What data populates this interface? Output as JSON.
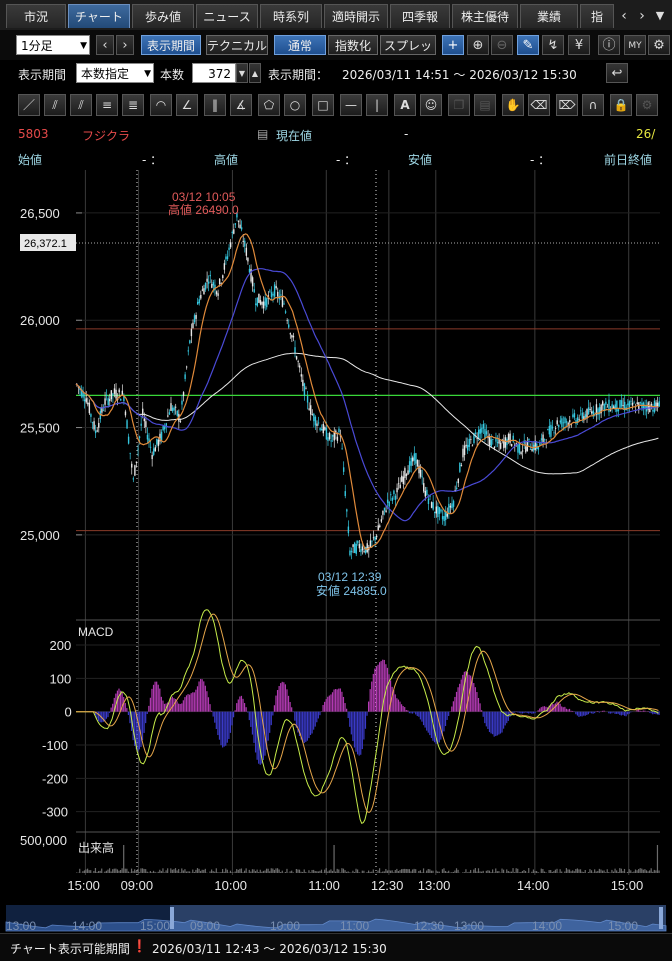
{
  "tabs": [
    {
      "label": "市況",
      "active": false
    },
    {
      "label": "チャート",
      "active": true
    },
    {
      "label": "歩み値",
      "active": false
    },
    {
      "label": "ニュース",
      "active": false
    },
    {
      "label": "時系列",
      "active": false
    },
    {
      "label": "適時開示",
      "active": false
    },
    {
      "label": "四季報",
      "active": false
    },
    {
      "label": "株主優待",
      "active": false
    },
    {
      "label": "業績",
      "active": false
    },
    {
      "label": "指",
      "active": false
    }
  ],
  "toolbar1": {
    "interval": "1分足",
    "period_button": "表示期間",
    "technical_button": "テクニカル",
    "normal_button": "通常",
    "index_button": "指数化",
    "spread_button": "スプレッド"
  },
  "toolbar2": {
    "period_label": "表示期間",
    "period_mode": "本数指定",
    "count_label": "本数",
    "count_value": "372",
    "range_label": "表示期間：",
    "range_value": "2026/03/11 14:51 ～ 2026/03/12 15:30"
  },
  "stock": {
    "code": "5803",
    "name": "フジクラ",
    "current_label": "現在値",
    "current_value": "-",
    "date_fragment": "26/"
  },
  "ohlc": {
    "open_label": "始値",
    "open_value": "- ：",
    "high_label": "高値",
    "high_value": "- ：",
    "low_label": "安値",
    "low_value": "- ：",
    "prev_label": "前日終値"
  },
  "chart_data": {
    "type": "line",
    "price_axis": {
      "ticks": [
        "26,500",
        "26,000",
        "25,500",
        "25,000"
      ],
      "ylim": [
        24650,
        26700
      ]
    },
    "cursor_price": "26,372.1",
    "high_annotation": {
      "time": "03/12 10:05",
      "label": "高値 26490.0"
    },
    "low_annotation": {
      "time": "03/12 12:39",
      "label": "安値 24885.0"
    },
    "x_ticks": [
      "15:00",
      "09:00",
      "10:00",
      "11:00",
      "12:30",
      "13:00",
      "14:00",
      "15:00"
    ],
    "price_series": [
      {
        "name": "price",
        "x": [
          0,
          6,
          12,
          18,
          24,
          30,
          36,
          42,
          48,
          54,
          60,
          66,
          72,
          78,
          84,
          90,
          96,
          102,
          108,
          114,
          120,
          126,
          132,
          138,
          144,
          150,
          156,
          162,
          168,
          174,
          180,
          186,
          192,
          198,
          204,
          210,
          216,
          222,
          228,
          234,
          240,
          246,
          252,
          258,
          264,
          270,
          276,
          282,
          288,
          294,
          300,
          306,
          312,
          318,
          324,
          330,
          336,
          342,
          348,
          354,
          360,
          366,
          372
        ],
        "values": [
          25700,
          25640,
          25480,
          25620,
          25660,
          25650,
          25250,
          25560,
          25380,
          25460,
          25600,
          25540,
          25900,
          26100,
          26200,
          26140,
          26300,
          26490,
          26320,
          26100,
          26080,
          26140,
          26080,
          25900,
          25700,
          25560,
          25500,
          25440,
          25480,
          24920,
          24950,
          24930,
          25020,
          25150,
          25200,
          25300,
          25360,
          25200,
          25120,
          25080,
          25160,
          25380,
          25440,
          25500,
          25430,
          25420,
          25450,
          25400,
          25420,
          25410,
          25470,
          25520,
          25530,
          25540,
          25560,
          25580,
          25600,
          25600,
          25600,
          25600,
          25600,
          25600,
          25600
        ]
      }
    ],
    "ma_levels": {
      "green_line": 25650,
      "upper_red": 25960,
      "lower_red": 25020
    },
    "macd": {
      "label": "MACD",
      "ticks": [
        "200",
        "100",
        "0",
        "-100",
        "-200",
        "-300"
      ],
      "ylim": [
        -340,
        260
      ]
    },
    "volume": {
      "label": "出来高",
      "tick": "500,000"
    },
    "navigator_ticks": [
      "13:00",
      "14:00",
      "15:00",
      "09:00",
      "10:00",
      "11:00",
      "12:30",
      "13:00",
      "14:00",
      "15:00"
    ]
  },
  "status": {
    "label": "チャート表示可能期間",
    "range": "2026/03/11 12:43 ～ 2026/03/12 15:30"
  }
}
